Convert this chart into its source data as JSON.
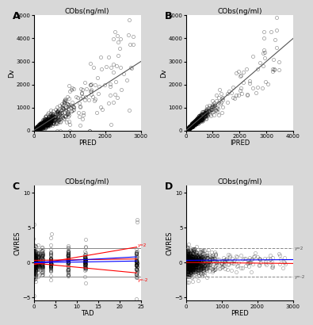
{
  "title": "CObs(ng/ml)",
  "bg_color": "#d8d8d8",
  "plot_bg": "#ffffff",
  "panel_A": {
    "label": "A",
    "xlabel": "PRED",
    "ylabel": "Dv",
    "xlim": [
      0,
      3000
    ],
    "ylim": [
      0,
      5000
    ],
    "xticks": [
      0,
      1000,
      2000,
      3000
    ],
    "yticks": [
      0,
      1000,
      2000,
      3000,
      4000,
      5000
    ],
    "line_color": "#555555",
    "marker_color": "black",
    "marker_size": 3,
    "marker_alpha": 0.5
  },
  "panel_B": {
    "label": "B",
    "xlabel": "IPRED",
    "ylabel": "Dv",
    "xlim": [
      0,
      4000
    ],
    "ylim": [
      0,
      5000
    ],
    "xticks": [
      0,
      1000,
      2000,
      3000,
      4000
    ],
    "yticks": [
      0,
      1000,
      2000,
      3000,
      4000,
      5000
    ],
    "line_color": "#555555",
    "marker_color": "black",
    "marker_size": 3,
    "marker_alpha": 0.5
  },
  "panel_C": {
    "label": "C",
    "xlabel": "TAD",
    "ylabel": "CWRES",
    "xlim": [
      0,
      25
    ],
    "ylim": [
      -5.5,
      11
    ],
    "xticks": [
      0,
      5,
      10,
      15,
      20,
      25
    ],
    "yticks": [
      -5,
      0,
      5,
      10
    ],
    "hline_y2": 2,
    "hline_yn2": -2,
    "hline_color": "#888888",
    "red_lines": [
      [
        0,
        -0.3,
        24,
        2.2
      ],
      [
        0,
        0.3,
        24,
        0.5
      ],
      [
        0,
        -0.1,
        24,
        -1.5
      ]
    ],
    "blue_lines": [
      [
        0,
        0.0,
        24,
        0.8
      ],
      [
        0,
        -0.05,
        24,
        0.2
      ]
    ],
    "marker_color": "black",
    "marker_size": 3,
    "marker_alpha": 0.45,
    "label_y2": "y=2",
    "label_yn2": "y=-2"
  },
  "panel_D": {
    "label": "D",
    "xlabel": "PRED",
    "ylabel": "CWRES",
    "xlim": [
      0,
      3000
    ],
    "ylim": [
      -5.5,
      11
    ],
    "xticks": [
      0,
      1000,
      2000,
      3000
    ],
    "yticks": [
      -5,
      0,
      5,
      10
    ],
    "hline_y2": 2,
    "hline_yn2": -2,
    "hline_color": "#888888",
    "red_line_y": 0.0,
    "blue_line_y": 0.3,
    "marker_color": "black",
    "marker_size": 3,
    "marker_alpha": 0.4,
    "label_y2": "y=2",
    "label_yn2": "y=-2"
  }
}
